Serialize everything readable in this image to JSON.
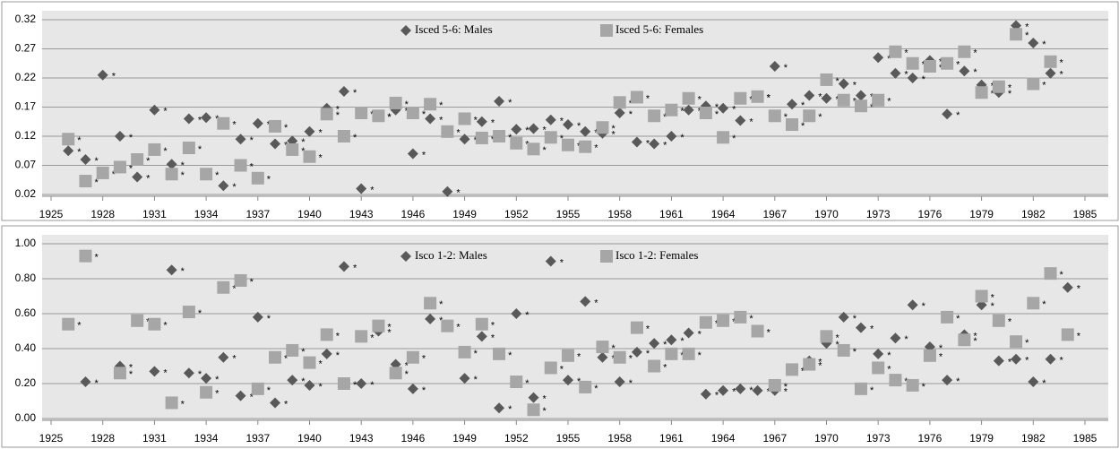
{
  "chart_data": [
    {
      "type": "scatter",
      "xlim": [
        1925,
        1985
      ],
      "xticks": [
        1925,
        1928,
        1931,
        1934,
        1937,
        1940,
        1943,
        1946,
        1949,
        1952,
        1955,
        1958,
        1961,
        1964,
        1967,
        1970,
        1973,
        1976,
        1979,
        1982,
        1985
      ],
      "ylim": [
        0.02,
        0.32
      ],
      "yticks": [
        0.02,
        0.07,
        0.12,
        0.17,
        0.22,
        0.27,
        0.32
      ],
      "grid": true,
      "series": [
        {
          "name": "Isced 5-6: Males",
          "marker": "diamond",
          "color": "#595959",
          "x": [
            1926,
            1927,
            1928,
            1929,
            1930,
            1931,
            1932,
            1933,
            1934,
            1935,
            1936,
            1937,
            1938,
            1939,
            1940,
            1941,
            1942,
            1943,
            1944,
            1945,
            1946,
            1947,
            1948,
            1949,
            1950,
            1951,
            1952,
            1953,
            1954,
            1955,
            1956,
            1957,
            1958,
            1959,
            1960,
            1961,
            1962,
            1963,
            1964,
            1965,
            1966,
            1967,
            1968,
            1969,
            1970,
            1971,
            1972,
            1973,
            1974,
            1975,
            1976,
            1977,
            1978,
            1979,
            1980,
            1981,
            1982,
            1983
          ],
          "values": [
            0.095,
            0.08,
            0.225,
            0.12,
            0.05,
            0.165,
            0.072,
            0.15,
            0.152,
            0.035,
            0.115,
            0.142,
            0.107,
            0.112,
            0.128,
            0.168,
            0.197,
            0.03,
            0.155,
            0.165,
            0.09,
            0.15,
            0.025,
            0.115,
            0.145,
            0.18,
            0.132,
            0.133,
            0.148,
            0.14,
            0.128,
            0.125,
            0.16,
            0.11,
            0.107,
            0.12,
            0.165,
            0.172,
            0.168,
            0.147,
            0.188,
            0.24,
            0.175,
            0.19,
            0.185,
            0.21,
            0.19,
            0.255,
            0.228,
            0.22,
            0.25,
            0.158,
            0.232,
            0.208,
            0.195,
            0.31,
            0.28,
            0.228
          ],
          "stars": [
            "*",
            "*",
            "*",
            "*",
            "*",
            "*",
            "*",
            "*",
            "*",
            "*",
            "*",
            "*",
            "*",
            "*",
            "*",
            "*",
            "*",
            "*",
            "*",
            "*",
            "*",
            "*",
            "*",
            "*",
            "*",
            "*",
            "*",
            "*",
            "*",
            "*",
            "*",
            "*",
            "*",
            "*",
            "*",
            "*",
            "*",
            "*",
            "*",
            "*",
            "*",
            "*",
            "*",
            "*",
            "*",
            "*",
            "*",
            "*",
            "*",
            "*",
            "*",
            "*",
            "*",
            "*",
            "*",
            "*",
            "*",
            "*"
          ]
        },
        {
          "name": "Isced 5-6: Females",
          "marker": "square",
          "color": "#a6a6a6",
          "x": [
            1926,
            1927,
            1928,
            1929,
            1930,
            1931,
            1932,
            1933,
            1934,
            1935,
            1936,
            1937,
            1938,
            1939,
            1940,
            1941,
            1942,
            1943,
            1944,
            1945,
            1946,
            1947,
            1948,
            1949,
            1950,
            1951,
            1952,
            1953,
            1954,
            1955,
            1956,
            1957,
            1958,
            1959,
            1960,
            1961,
            1962,
            1963,
            1964,
            1965,
            1966,
            1967,
            1968,
            1969,
            1970,
            1971,
            1972,
            1973,
            1974,
            1975,
            1976,
            1977,
            1978,
            1979,
            1980,
            1981,
            1982,
            1983
          ],
          "values": [
            0.115,
            0.043,
            0.057,
            0.067,
            0.08,
            0.097,
            0.055,
            0.1,
            0.055,
            0.142,
            0.07,
            0.048,
            0.137,
            0.097,
            0.085,
            0.158,
            0.12,
            0.16,
            0.155,
            0.177,
            0.16,
            0.175,
            0.128,
            0.15,
            0.117,
            0.12,
            0.108,
            0.098,
            0.118,
            0.105,
            0.102,
            0.135,
            0.178,
            0.187,
            0.155,
            0.165,
            0.185,
            0.16,
            0.118,
            0.185,
            0.188,
            0.155,
            0.14,
            0.155,
            0.217,
            0.182,
            0.172,
            0.182,
            0.265,
            0.245,
            0.24,
            0.245,
            0.265,
            0.195,
            0.205,
            0.295,
            0.21,
            0.248
          ],
          "stars": [
            "*",
            "*",
            "*",
            "*",
            "*",
            "*",
            "*",
            "*",
            "*",
            "*",
            "*",
            "*",
            "*",
            "*",
            "*",
            "*",
            "*",
            "*",
            "*",
            "*",
            "*",
            "*",
            "*",
            "*",
            "*",
            "*",
            "*",
            "*",
            "*",
            "*",
            "*",
            "*",
            "*",
            "*",
            "*",
            "*",
            "*",
            "*",
            "*",
            "*",
            "*",
            "*",
            "*",
            "*",
            "*",
            "*",
            "*",
            "*",
            "*",
            "*",
            "*",
            "*",
            "*",
            "*",
            "*",
            "*",
            "*",
            "*"
          ]
        }
      ]
    },
    {
      "type": "scatter",
      "xlim": [
        1925,
        1985
      ],
      "xticks": [
        1925,
        1928,
        1931,
        1934,
        1937,
        1940,
        1943,
        1946,
        1949,
        1952,
        1955,
        1958,
        1961,
        1964,
        1967,
        1970,
        1973,
        1976,
        1979,
        1982,
        1985
      ],
      "ylim": [
        0,
        1
      ],
      "yticks": [
        {
          "value": 0,
          "label": "0.00"
        },
        {
          "value": 0.2,
          "label": "0.20"
        },
        {
          "value": 0.4,
          "label": "0.40"
        },
        {
          "value": 0.6,
          "label": "0.60"
        },
        {
          "value": 0.8,
          "label": "0.80"
        },
        {
          "value": 1,
          "label": "1.00"
        }
      ],
      "grid": true,
      "series": [
        {
          "name": "Isco 1-2: Males",
          "marker": "diamond",
          "color": "#595959",
          "x": [
            1927,
            1929,
            1931,
            1932,
            1933,
            1934,
            1935,
            1936,
            1937,
            1938,
            1939,
            1940,
            1941,
            1942,
            1943,
            1944,
            1945,
            1946,
            1947,
            1949,
            1950,
            1951,
            1952,
            1953,
            1954,
            1955,
            1956,
            1957,
            1958,
            1959,
            1960,
            1961,
            1962,
            1963,
            1964,
            1965,
            1966,
            1967,
            1968,
            1969,
            1970,
            1971,
            1972,
            1973,
            1974,
            1975,
            1976,
            1977,
            1978,
            1979,
            1980,
            1981,
            1982,
            1983,
            1984
          ],
          "values": [
            0.21,
            0.3,
            0.27,
            0.85,
            0.26,
            0.23,
            0.35,
            0.13,
            0.58,
            0.09,
            0.22,
            0.19,
            0.37,
            0.87,
            0.2,
            0.5,
            0.31,
            0.17,
            0.57,
            0.23,
            0.47,
            0.06,
            0.6,
            0.12,
            0.9,
            0.22,
            0.67,
            0.35,
            0.21,
            0.38,
            0.43,
            0.45,
            0.49,
            0.14,
            0.16,
            0.17,
            0.16,
            0.16,
            0.28,
            0.33,
            0.43,
            0.58,
            0.52,
            0.37,
            0.46,
            0.65,
            0.41,
            0.22,
            0.48,
            0.65,
            0.33,
            0.34,
            0.21,
            0.34,
            0.75
          ],
          "stars": [
            "*",
            "*",
            "*",
            "*",
            "*",
            "*",
            "*",
            "*",
            "*",
            "*",
            "*",
            "*",
            "*",
            "*",
            "*",
            "*",
            "*",
            "*",
            "*",
            "*",
            "*",
            "*",
            "*",
            "*",
            "*",
            "*",
            "*",
            "*",
            "*",
            "*",
            "*",
            "*",
            "*",
            "*",
            "*",
            "*",
            "*",
            "*",
            "*",
            "*",
            "*",
            "*",
            "*",
            "*",
            "*",
            "*",
            "*",
            "*",
            "*",
            "*",
            "*",
            "*",
            "*",
            "*",
            "*"
          ]
        },
        {
          "name": "Isco 1-2: Females",
          "marker": "square",
          "color": "#a6a6a6",
          "x": [
            1926,
            1927,
            1929,
            1930,
            1931,
            1932,
            1933,
            1934,
            1935,
            1936,
            1937,
            1938,
            1939,
            1940,
            1941,
            1942,
            1943,
            1944,
            1945,
            1946,
            1947,
            1948,
            1949,
            1950,
            1951,
            1952,
            1953,
            1954,
            1955,
            1956,
            1957,
            1958,
            1959,
            1960,
            1961,
            1962,
            1963,
            1964,
            1965,
            1966,
            1967,
            1968,
            1969,
            1970,
            1971,
            1972,
            1973,
            1974,
            1975,
            1976,
            1977,
            1978,
            1979,
            1980,
            1981,
            1982,
            1983,
            1984
          ],
          "values": [
            0.54,
            0.93,
            0.26,
            0.56,
            0.54,
            0.09,
            0.61,
            0.15,
            0.75,
            0.79,
            0.17,
            0.35,
            0.39,
            0.32,
            0.48,
            0.2,
            0.47,
            0.53,
            0.26,
            0.35,
            0.66,
            0.53,
            0.38,
            0.54,
            0.37,
            0.21,
            0.05,
            0.29,
            0.36,
            0.18,
            0.41,
            0.35,
            0.52,
            0.3,
            0.37,
            0.37,
            0.55,
            0.56,
            0.58,
            0.5,
            0.19,
            0.28,
            0.31,
            0.47,
            0.39,
            0.17,
            0.29,
            0.22,
            0.19,
            0.36,
            0.58,
            0.45,
            0.7,
            0.56,
            0.44,
            0.66,
            0.83,
            0.48
          ],
          "stars": [
            "*",
            "*",
            "*",
            "*",
            "*",
            "*",
            "*",
            "*",
            "*",
            "*",
            "*",
            "*",
            "*",
            "*",
            "*",
            "*",
            "*",
            "*",
            "*",
            "*",
            "*",
            "*",
            "*",
            "*",
            "*",
            "*",
            "*",
            "*",
            "*",
            "*",
            "*",
            "*",
            "*",
            "*",
            "*",
            "*",
            "*",
            "*",
            "*",
            "*",
            "*",
            "*",
            "*",
            "*",
            "*",
            "*",
            "*",
            "*",
            "*",
            "*",
            "*",
            "*",
            "*",
            "*",
            "*",
            "*",
            "*",
            "*"
          ]
        }
      ]
    }
  ]
}
